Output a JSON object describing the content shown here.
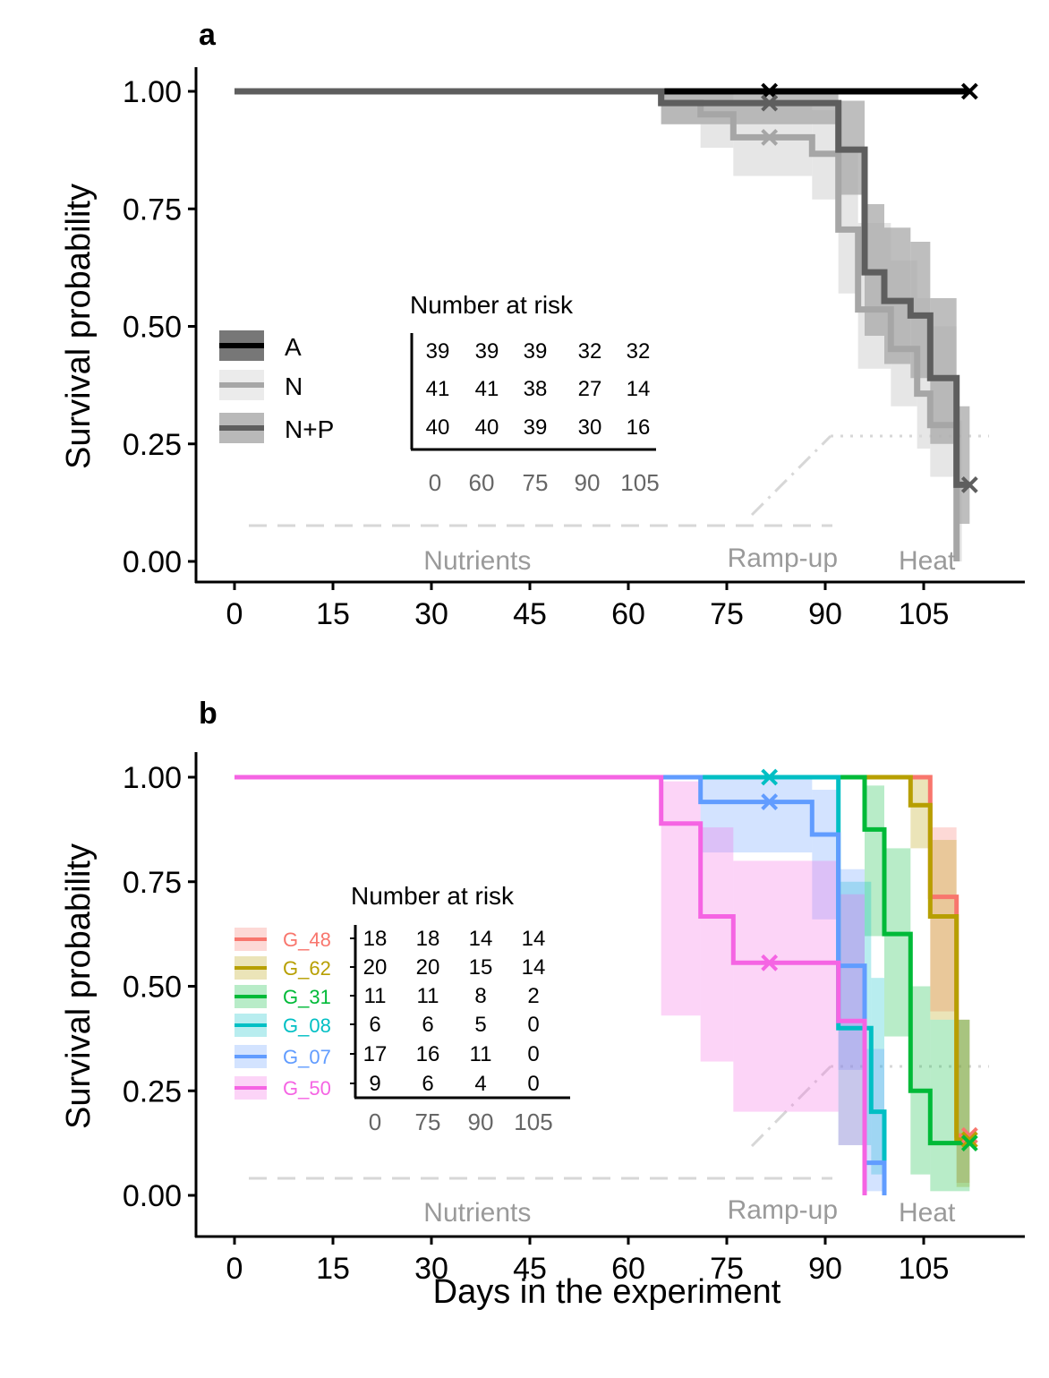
{
  "chart_data": [
    {
      "type": "line",
      "panel_label": "a",
      "ylabel": "Survival probability",
      "xlabel": "",
      "xlim": [
        -2,
        119
      ],
      "ylim": [
        -0.05,
        1.05
      ],
      "x_ticks": [
        0,
        15,
        30,
        45,
        60,
        75,
        90,
        105
      ],
      "y_ticks": [
        "0.00",
        "0.25",
        "0.50",
        "0.75",
        "1.00"
      ],
      "phases": [
        {
          "label": "Nutrients",
          "x": 37
        },
        {
          "label": "Ramp-up",
          "x": 83.5
        },
        {
          "label": "Heat",
          "x": 105.5
        }
      ],
      "series": [
        {
          "name": "A",
          "color": "#000000",
          "band": "#555555",
          "steps": [
            [
              0,
              1.0
            ],
            [
              112,
              1.0
            ]
          ],
          "ci": [],
          "censor": [
            [
              81.5,
              1.0
            ],
            [
              112,
              1.0
            ]
          ]
        },
        {
          "name": "N",
          "color": "#a6a6a6",
          "band": "#d9d9d9",
          "steps": [
            [
              0,
              1.0
            ],
            [
              65,
              1.0
            ],
            [
              65,
              0.976
            ],
            [
              71,
              0.976
            ],
            [
              71,
              0.951
            ],
            [
              76,
              0.951
            ],
            [
              76,
              0.902
            ],
            [
              88,
              0.902
            ],
            [
              88,
              0.867
            ],
            [
              92,
              0.867
            ],
            [
              92,
              0.706
            ],
            [
              95,
              0.706
            ],
            [
              95,
              0.536
            ],
            [
              100,
              0.536
            ],
            [
              100,
              0.452
            ],
            [
              104,
              0.452
            ],
            [
              104,
              0.357
            ],
            [
              106,
              0.357
            ],
            [
              106,
              0.29
            ],
            [
              110,
              0.29
            ],
            [
              110,
              0.0
            ]
          ],
          "ci": [
            [
              65,
              0.93,
              1.0
            ],
            [
              71,
              0.88,
              1.0
            ],
            [
              76,
              0.82,
              0.97
            ],
            [
              88,
              0.77,
              0.96
            ],
            [
              92,
              0.57,
              0.87
            ],
            [
              95,
              0.41,
              0.72
            ],
            [
              100,
              0.33,
              0.64
            ],
            [
              104,
              0.24,
              0.56
            ],
            [
              106,
              0.18,
              0.5
            ],
            [
              110,
              0.0,
              0.3
            ]
          ],
          "censor": [
            [
              81.5,
              0.902
            ]
          ]
        },
        {
          "name": "N+P",
          "color": "#5e5e5e",
          "band": "#a8a8a8",
          "steps": [
            [
              0,
              1.0
            ],
            [
              65,
              1.0
            ],
            [
              65,
              0.975
            ],
            [
              92,
              0.975
            ],
            [
              92,
              0.876
            ],
            [
              96,
              0.876
            ],
            [
              96,
              0.615
            ],
            [
              99,
              0.615
            ],
            [
              99,
              0.554
            ],
            [
              103,
              0.554
            ],
            [
              103,
              0.523
            ],
            [
              106,
              0.523
            ],
            [
              106,
              0.39
            ],
            [
              110,
              0.39
            ],
            [
              110,
              0.163
            ],
            [
              112,
              0.163
            ]
          ],
          "ci": [
            [
              65,
              0.93,
              1.0
            ],
            [
              92,
              0.78,
              0.98
            ],
            [
              96,
              0.48,
              0.76
            ],
            [
              99,
              0.42,
              0.71
            ],
            [
              103,
              0.39,
              0.68
            ],
            [
              106,
              0.25,
              0.56
            ],
            [
              110,
              0.08,
              0.33
            ]
          ],
          "censor": [
            [
              81.5,
              0.975
            ],
            [
              112,
              0.163
            ]
          ]
        }
      ],
      "risk_table": {
        "title": "Number at risk",
        "times": [
          "0",
          "60",
          "75",
          "90",
          "105"
        ],
        "rows": [
          {
            "name": "A",
            "values": [
              "39",
              "39",
              "39",
              "32",
              "32"
            ]
          },
          {
            "name": "N",
            "values": [
              "41",
              "41",
              "38",
              "27",
              "14"
            ]
          },
          {
            "name": "N+P",
            "values": [
              "40",
              "40",
              "39",
              "30",
              "16"
            ]
          }
        ]
      },
      "legend": [
        "A",
        "N",
        "N+P"
      ]
    },
    {
      "type": "line",
      "panel_label": "b",
      "ylabel": "Survival probability",
      "xlabel": "Days in the experiment",
      "xlim": [
        -2,
        119
      ],
      "ylim": [
        -0.05,
        1.05
      ],
      "x_ticks": [
        0,
        15,
        30,
        45,
        60,
        75,
        90,
        105
      ],
      "y_ticks": [
        "0.00",
        "0.25",
        "0.50",
        "0.75",
        "1.00"
      ],
      "phases": [
        {
          "label": "Nutrients",
          "x": 37
        },
        {
          "label": "Ramp-up",
          "x": 83.5
        },
        {
          "label": "Heat",
          "x": 105.5
        }
      ],
      "series": [
        {
          "name": "G_48",
          "color": "#f8766d",
          "steps": [
            [
              0,
              1.0
            ],
            [
              106,
              1.0
            ],
            [
              106,
              0.714
            ],
            [
              110,
              0.714
            ],
            [
              110,
              0.143
            ],
            [
              112,
              0.143
            ]
          ],
          "ci": [
            [
              106,
              0.44,
              0.88
            ],
            [
              110,
              0.03,
              0.42
            ]
          ],
          "censor": [
            [
              112,
              0.143
            ]
          ]
        },
        {
          "name": "G_62",
          "color": "#b79f00",
          "steps": [
            [
              0,
              1.0
            ],
            [
              103,
              1.0
            ],
            [
              103,
              0.933
            ],
            [
              106,
              0.933
            ],
            [
              106,
              0.667
            ],
            [
              110,
              0.667
            ],
            [
              110,
              0.133
            ],
            [
              112,
              0.133
            ]
          ],
          "ci": [
            [
              103,
              0.83,
              1.0
            ],
            [
              106,
              0.42,
              0.85
            ],
            [
              110,
              0.02,
              0.42
            ]
          ],
          "censor": [
            [
              112,
              0.133
            ]
          ]
        },
        {
          "name": "G_31",
          "color": "#00ba38",
          "steps": [
            [
              0,
              1.0
            ],
            [
              96,
              1.0
            ],
            [
              96,
              0.875
            ],
            [
              99,
              0.875
            ],
            [
              99,
              0.625
            ],
            [
              103,
              0.625
            ],
            [
              103,
              0.25
            ],
            [
              106,
              0.25
            ],
            [
              106,
              0.125
            ],
            [
              112,
              0.125
            ]
          ],
          "ci": [
            [
              96,
              0.62,
              0.98
            ],
            [
              99,
              0.38,
              0.83
            ],
            [
              103,
              0.05,
              0.5
            ],
            [
              106,
              0.01,
              0.42
            ]
          ],
          "censor": [
            [
              112,
              0.125
            ]
          ]
        },
        {
          "name": "G_08",
          "color": "#00bfc4",
          "steps": [
            [
              0,
              1.0
            ],
            [
              92,
              1.0
            ],
            [
              92,
              0.4
            ],
            [
              97,
              0.4
            ],
            [
              97,
              0.2
            ],
            [
              99,
              0.2
            ],
            [
              99,
              0.0
            ]
          ],
          "ci": [
            [
              92,
              0.12,
              0.75
            ],
            [
              97,
              0.05,
              0.52
            ]
          ],
          "censor": [
            [
              81.5,
              1.0
            ]
          ]
        },
        {
          "name": "G_07",
          "color": "#619cff",
          "steps": [
            [
              0,
              1.0
            ],
            [
              71,
              1.0
            ],
            [
              71,
              0.941
            ],
            [
              88,
              0.941
            ],
            [
              88,
              0.863
            ],
            [
              92,
              0.863
            ],
            [
              92,
              0.549
            ],
            [
              96,
              0.549
            ],
            [
              96,
              0.078
            ],
            [
              99,
              0.078
            ],
            [
              99,
              0.0
            ]
          ],
          "ci": [
            [
              71,
              0.82,
              1.0
            ],
            [
              88,
              0.66,
              0.97
            ],
            [
              92,
              0.3,
              0.78
            ],
            [
              96,
              0.01,
              0.35
            ]
          ],
          "censor": [
            [
              81.5,
              0.941
            ]
          ]
        },
        {
          "name": "G_50",
          "color": "#f564e3",
          "steps": [
            [
              0,
              1.0
            ],
            [
              65,
              1.0
            ],
            [
              65,
              0.889
            ],
            [
              71,
              0.889
            ],
            [
              71,
              0.667
            ],
            [
              76,
              0.667
            ],
            [
              76,
              0.556
            ],
            [
              92,
              0.556
            ],
            [
              92,
              0.417
            ],
            [
              96,
              0.417
            ],
            [
              96,
              0.0
            ]
          ],
          "ci": [
            [
              65,
              0.43,
              0.99
            ],
            [
              71,
              0.32,
              0.88
            ],
            [
              76,
              0.2,
              0.8
            ],
            [
              92,
              0.12,
              0.72
            ]
          ],
          "censor": [
            [
              81.5,
              0.556
            ]
          ]
        }
      ],
      "risk_table": {
        "title": "Number at risk",
        "times": [
          "0",
          "75",
          "90",
          "105"
        ],
        "rows": [
          {
            "name": "G_48",
            "values": [
              "18",
              "18",
              "14",
              "14"
            ]
          },
          {
            "name": "G_62",
            "values": [
              "20",
              "20",
              "15",
              "14"
            ]
          },
          {
            "name": "G_31",
            "values": [
              "11",
              "11",
              "8",
              "2"
            ]
          },
          {
            "name": "G_08",
            "values": [
              "6",
              "6",
              "5",
              "0"
            ]
          },
          {
            "name": "G_07",
            "values": [
              "17",
              "16",
              "11",
              "0"
            ]
          },
          {
            "name": "G_50",
            "values": [
              "9",
              "6",
              "4",
              "0"
            ]
          }
        ]
      },
      "legend": [
        "G_48",
        "G_62",
        "G_31",
        "G_08",
        "G_07",
        "G_50"
      ]
    }
  ]
}
